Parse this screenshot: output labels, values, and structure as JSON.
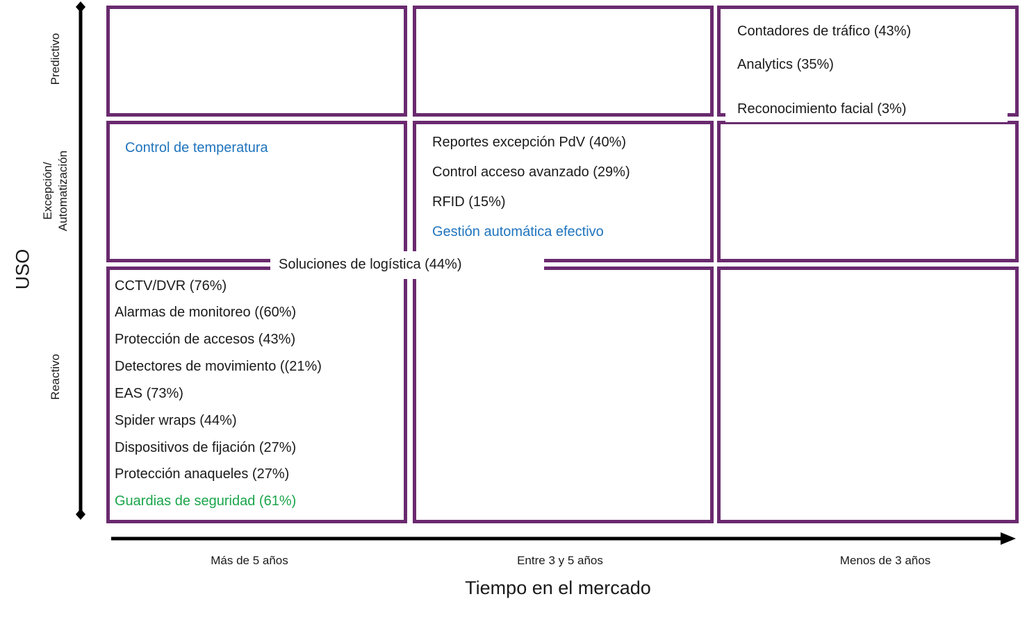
{
  "y_axis": {
    "title": "USO",
    "levels": [
      "Predictivo",
      "Excepción/\nAutomatización",
      "Reactivo"
    ]
  },
  "x_axis": {
    "title": "Tiempo en el mercado",
    "levels": [
      "Más de 5 años",
      "Entre 3 y 5 años",
      "Menos de 3 años"
    ]
  },
  "cells": {
    "predictivo_menos3": [
      "Contadores de tráfico (43%)",
      "Analytics (35%)",
      "Reconocimiento facial (3%)"
    ],
    "excepcion_mas5": [
      "Control de temperatura"
    ],
    "excepcion_3a5": [
      "Reportes excepción PdV (40%)",
      "Control acceso avanzado (29%)",
      "RFID (15%)",
      "Gestión automática efectivo"
    ],
    "bridge": "Soluciones de logística (44%)",
    "reactivo_mas5": [
      "CCTV/DVR (76%)",
      "Alarmas de monitoreo ((60%)",
      "Protección de accesos (43%)",
      "Detectores de movimiento ((21%)",
      "EAS (73%)",
      "Spider wraps (44%)",
      "Dispositivos de fijación (27%)",
      "Protección anaqueles (27%)",
      "Guardias  de seguridad (61%)"
    ]
  },
  "colors": {
    "border": "#6a2a6f",
    "blue_text": "#1f74bd",
    "green_text": "#1aa54a",
    "axis": "#000000"
  }
}
